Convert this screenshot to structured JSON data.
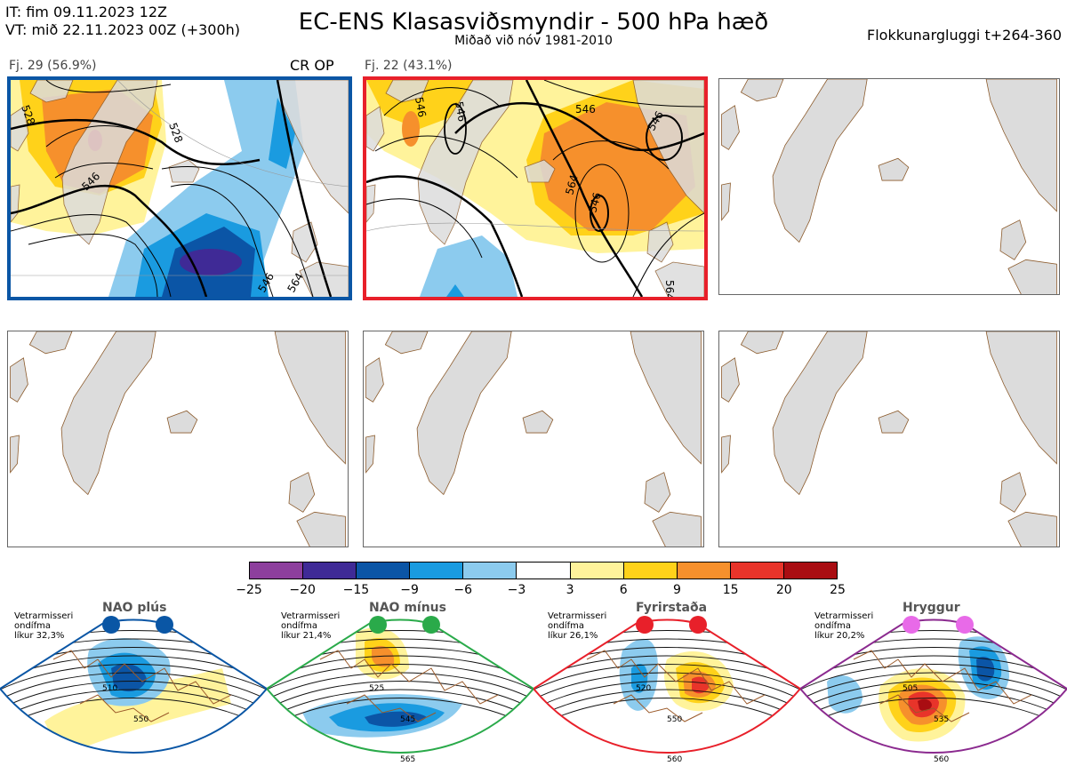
{
  "header": {
    "it_line": "IT: fim 09.11.2023 12Z",
    "vt_line": "VT: mið 22.11.2023 00Z  (+300h)",
    "title": "EC-ENS Klasasviðsmyndir - 500 hPa hæð",
    "subtitle": "Miðað við nóv 1981-2010",
    "window": "Flokkunargluggi t+264-360"
  },
  "clusters": [
    {
      "label": "Fj. 29 (56.9%)",
      "tag": "CR OP",
      "border": "#0a56a5"
    },
    {
      "label": "Fj. 22 (43.1%)",
      "tag": "",
      "border": "#e8202a"
    }
  ],
  "contour_labels": {
    "cluster1": [
      "528",
      "528",
      "546",
      "546",
      "564"
    ],
    "cluster2": [
      "546",
      "546",
      "546",
      "546",
      "564",
      "546",
      "564"
    ]
  },
  "colorbar": {
    "ticks": [
      "−25",
      "−20",
      "−15",
      "−9",
      "−6",
      "−3",
      "3",
      "6",
      "9",
      "15",
      "20",
      "25"
    ],
    "colors": [
      "#8d3f9d",
      "#3f2a96",
      "#0b55a6",
      "#1a9be0",
      "#8ccbee",
      "#ffffff",
      "#fff39b",
      "#ffd21a",
      "#f6902c",
      "#e8342a",
      "#a90d12"
    ]
  },
  "regimes": [
    {
      "title": "NAO plús",
      "info": [
        "Vetrarmisseri",
        "ondífma",
        "líkur 32,3%"
      ],
      "color": "#0a56a5",
      "labels": [
        "510",
        "550"
      ]
    },
    {
      "title": "NAO mínus",
      "info": [
        "Vetrarmisseri",
        "ondífma",
        "líkur 21,4%"
      ],
      "color": "#2aaa4a",
      "labels": [
        "525",
        "545",
        "565"
      ]
    },
    {
      "title": "Fyrirstaða",
      "info": [
        "Vetrarmisseri",
        "ondífma",
        "líkur 26,1%"
      ],
      "color": "#e8202a",
      "labels": [
        "520",
        "550",
        "560"
      ]
    },
    {
      "title": "Hryggur",
      "info": [
        "Vetrarmisseri",
        "ondífma",
        "líkur 20,2%"
      ],
      "color": "#8b2a8f",
      "labels": [
        "505",
        "535",
        "560"
      ]
    }
  ]
}
